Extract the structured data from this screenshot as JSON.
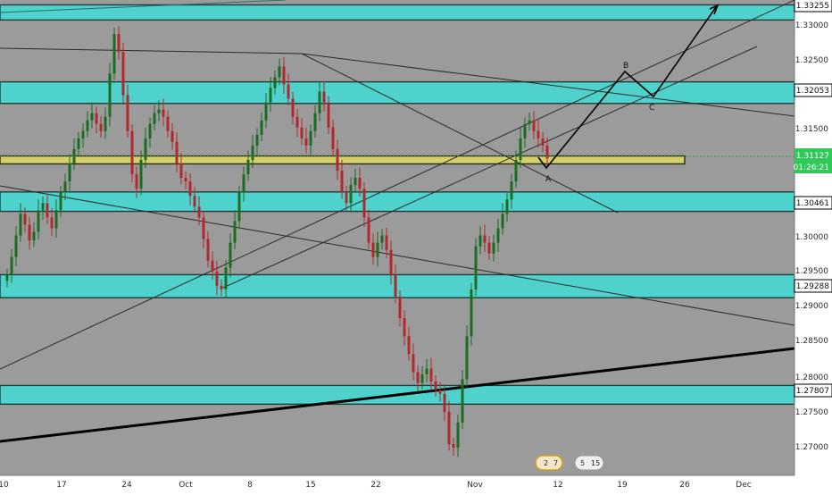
{
  "colors": {
    "background": "#9b9b9b",
    "zone_fill": "#4fd1cc",
    "zone_border": "#1f3d3b",
    "pivot_fill": "#d4cf6a",
    "pivot_border": "#2a2a10",
    "candle_up": "#1e6b24",
    "candle_down": "#b3282d",
    "axis_bg": "#ffffff",
    "axis_text": "#2b2b2b",
    "price_tag_bg": "#31c85a"
  },
  "chart_data": {
    "type": "candlestick",
    "symbol_view": "price chart with support/resistance zones and trend lines",
    "x_tick_labels": [
      "10",
      "17",
      "24",
      "Oct",
      "8",
      "15",
      "22",
      "Nov",
      "12",
      "19",
      "26",
      "Dec"
    ],
    "y_tick_labels": [
      "1.33000",
      "1.32500",
      "1.31500",
      "1.30000",
      "1.29500",
      "1.29000",
      "1.28500",
      "1.28000",
      "1.27500",
      "1.27000"
    ],
    "ylim": [
      1.2667,
      1.3355
    ],
    "grid": false,
    "level_labels": [
      "1.33255",
      "1.32053",
      "1.30461",
      "1.29288",
      "1.27807"
    ],
    "current_price": "1.31127",
    "countdown": "01:26:21",
    "zones": [
      {
        "name": "resistance-top",
        "low": 1.33045,
        "high": 1.33255
      },
      {
        "name": "resistance-upper",
        "low": 1.31885,
        "high": 1.32185
      },
      {
        "name": "pivot",
        "low": 1.31045,
        "high": 1.31155
      },
      {
        "name": "support-upper",
        "low": 1.30385,
        "high": 1.30655
      },
      {
        "name": "support-middle",
        "low": 1.29185,
        "high": 1.29505
      },
      {
        "name": "support-lower",
        "low": 1.27705,
        "high": 1.27965
      }
    ],
    "wave_labels": [
      "A",
      "B",
      "C"
    ],
    "badge_counts": [
      "2",
      "7",
      "5",
      "15"
    ],
    "series": [
      {
        "values": [
          1.295,
          1.2975,
          1.3005,
          1.3035,
          1.302,
          1.2998,
          1.301,
          1.304,
          1.305,
          1.303,
          1.3015,
          1.304,
          1.3065,
          1.308,
          1.3105,
          1.3125,
          1.314,
          1.315,
          1.3165,
          1.3175,
          1.316,
          1.315,
          1.317,
          1.323,
          1.3285,
          1.326,
          1.32,
          1.315,
          1.309,
          1.307,
          1.311,
          1.314,
          1.316,
          1.3175,
          1.318,
          1.317,
          1.315,
          1.3135,
          1.3105,
          1.3085,
          1.308,
          1.306,
          1.3045,
          1.303,
          1.3,
          1.297,
          1.2955,
          1.2935,
          1.293,
          1.296,
          1.2995,
          1.3025,
          1.3065,
          1.309,
          1.311,
          1.313,
          1.3145,
          1.3165,
          1.319,
          1.321,
          1.3225,
          1.324,
          1.3215,
          1.3195,
          1.317,
          1.3155,
          1.314,
          1.313,
          1.315,
          1.3175,
          1.3205,
          1.319,
          1.3155,
          1.3125,
          1.3095,
          1.3065,
          1.305,
          1.3075,
          1.3085,
          1.307,
          1.303,
          1.2995,
          1.2975,
          1.2995,
          1.3005,
          1.2985,
          1.295,
          1.292,
          1.289,
          1.2865,
          1.284,
          1.2815,
          1.28,
          1.2812,
          1.282,
          1.2802,
          1.279,
          1.2785,
          1.276,
          1.2715,
          1.271,
          1.2745,
          1.2805,
          1.2865,
          1.293,
          1.299,
          1.3005,
          1.2995,
          1.298,
          1.2995,
          1.3015,
          1.3035,
          1.3055,
          1.308,
          1.311,
          1.314,
          1.316,
          1.3165,
          1.315,
          1.314,
          1.313,
          1.3112
        ]
      }
    ]
  }
}
